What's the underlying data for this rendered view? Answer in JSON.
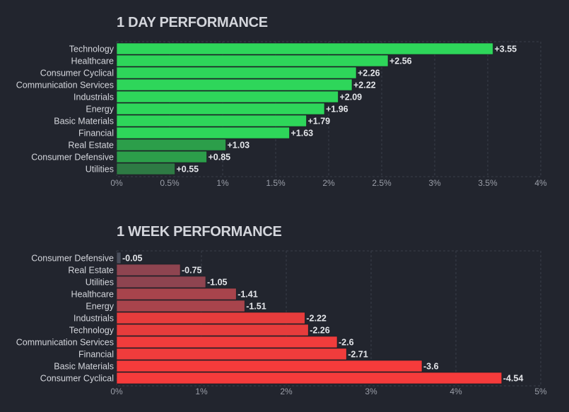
{
  "chart_data": [
    {
      "type": "bar",
      "orientation": "horizontal",
      "title": "1 DAY PERFORMANCE",
      "categories": [
        "Technology",
        "Healthcare",
        "Consumer Cyclical",
        "Communication Services",
        "Industrials",
        "Energy",
        "Basic Materials",
        "Financial",
        "Real Estate",
        "Consumer Defensive",
        "Utilities"
      ],
      "values": [
        3.55,
        2.56,
        2.26,
        2.22,
        2.09,
        1.96,
        1.79,
        1.63,
        1.03,
        0.85,
        0.55
      ],
      "value_labels": [
        "+3.55",
        "+2.56",
        "+2.26",
        "+2.22",
        "+2.09",
        "+1.96",
        "+1.79",
        "+1.63",
        "+1.03",
        "+0.85",
        "+0.55"
      ],
      "colors": [
        "#2ed65a",
        "#2ed65a",
        "#2ed65a",
        "#2ed65a",
        "#2ed65a",
        "#2ed65a",
        "#2ed65a",
        "#2ed65a",
        "#2c9e4a",
        "#2c9e4a",
        "#2e7a44"
      ],
      "xlim": [
        0,
        4
      ],
      "ticks": [
        0,
        0.5,
        1,
        1.5,
        2,
        2.5,
        3,
        3.5,
        4
      ],
      "tick_labels": [
        "0%",
        "0.5%",
        "1%",
        "1.5%",
        "2%",
        "2.5%",
        "3%",
        "3.5%",
        "4%"
      ],
      "grid": true
    },
    {
      "type": "bar",
      "orientation": "horizontal",
      "title": "1 WEEK PERFORMANCE",
      "categories": [
        "Consumer Defensive",
        "Real Estate",
        "Utilities",
        "Healthcare",
        "Energy",
        "Industrials",
        "Technology",
        "Communication Services",
        "Financial",
        "Basic Materials",
        "Consumer Cyclical"
      ],
      "values": [
        -0.05,
        -0.75,
        -1.05,
        -1.41,
        -1.51,
        -2.22,
        -2.26,
        -2.6,
        -2.71,
        -3.6,
        -4.54
      ],
      "value_labels": [
        "-0.05",
        "-0.75",
        "-1.05",
        "-1.41",
        "-1.51",
        "-2.22",
        "-2.26",
        "-2.6",
        "-2.71",
        "-3.6",
        "-4.54"
      ],
      "colors": [
        "#4a4f5c",
        "#8e4450",
        "#8e4450",
        "#a8444c",
        "#a8444c",
        "#e63c3c",
        "#e63c3c",
        "#f03c3c",
        "#f03c3c",
        "#f53b3b",
        "#f53b3b"
      ],
      "xlim": [
        0,
        5
      ],
      "ticks": [
        0,
        1,
        2,
        3,
        4,
        5
      ],
      "tick_labels": [
        "0%",
        "1%",
        "2%",
        "3%",
        "4%",
        "5%"
      ],
      "grid": true
    }
  ]
}
